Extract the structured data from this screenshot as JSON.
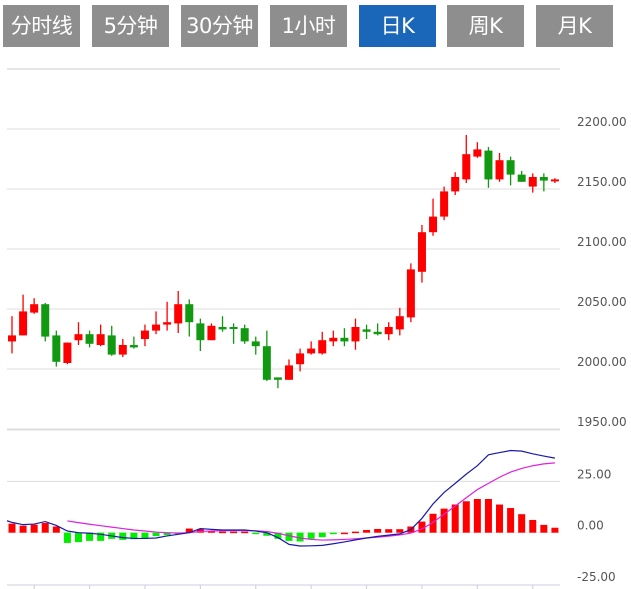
{
  "tabs": [
    {
      "label": "分时线",
      "active": false
    },
    {
      "label": "5分钟",
      "active": false
    },
    {
      "label": "30分钟",
      "active": false
    },
    {
      "label": "1小时",
      "active": false
    },
    {
      "label": "日K",
      "active": true
    },
    {
      "label": "周K",
      "active": false
    },
    {
      "label": "月K",
      "active": false
    }
  ],
  "colors": {
    "up": "#ff0000",
    "down": "#119911",
    "macd_down": "#00ee00",
    "dif": "#1a1aaa",
    "dea": "#e020e0",
    "tab": "#8e8e8e",
    "tab_active": "#1a66b8",
    "grid": "#dddddd"
  },
  "chart_data": [
    {
      "type": "candlestick",
      "title": "",
      "ylim": [
        1950,
        2250
      ],
      "yticks": [
        2200,
        2150,
        2100,
        2050,
        2000,
        1950
      ],
      "ytick_labels": [
        "2200.00",
        "2150.00",
        "2100.00",
        "2050.00",
        "2000.00",
        "1950.00"
      ],
      "ohlc": [
        [
          2023,
          2044,
          2013,
          2028
        ],
        [
          2028,
          2062,
          2028,
          2048
        ],
        [
          2047,
          2059,
          2046,
          2054
        ],
        [
          2054,
          2055,
          2023,
          2027
        ],
        [
          2028,
          2032,
          2002,
          2006
        ],
        [
          2005,
          2022,
          2004,
          2022
        ],
        [
          2024,
          2039,
          2020,
          2029
        ],
        [
          2029,
          2032,
          2018,
          2021
        ],
        [
          2020,
          2037,
          2019,
          2029
        ],
        [
          2028,
          2036,
          2011,
          2012
        ],
        [
          2012,
          2025,
          2010,
          2020
        ],
        [
          2020,
          2027,
          2017,
          2018
        ],
        [
          2025,
          2037,
          2019,
          2032
        ],
        [
          2032,
          2048,
          2029,
          2037
        ],
        [
          2037,
          2056,
          2032,
          2039
        ],
        [
          2038,
          2065,
          2030,
          2054
        ],
        [
          2054,
          2058,
          2027,
          2039
        ],
        [
          2038,
          2042,
          2015,
          2024
        ],
        [
          2024,
          2038,
          2024,
          2036
        ],
        [
          2035,
          2044,
          2031,
          2033
        ],
        [
          2035,
          2038,
          2021,
          2034
        ],
        [
          2034,
          2037,
          2021,
          2023
        ],
        [
          2023,
          2027,
          2012,
          2019
        ],
        [
          2019,
          2032,
          1990,
          1991
        ],
        [
          1993,
          1993,
          1984,
          1991
        ],
        [
          1991,
          2008,
          1991,
          2003
        ],
        [
          2004,
          2017,
          1998,
          2013
        ],
        [
          2013,
          2023,
          2012,
          2017
        ],
        [
          2013,
          2031,
          2012,
          2024
        ],
        [
          2023,
          2032,
          2019,
          2026
        ],
        [
          2026,
          2034,
          2019,
          2023
        ],
        [
          2023,
          2042,
          2016,
          2035
        ],
        [
          2033,
          2037,
          2025,
          2031
        ],
        [
          2031,
          2038,
          2028,
          2029
        ],
        [
          2029,
          2039,
          2024,
          2035
        ],
        [
          2033,
          2051,
          2028,
          2044
        ],
        [
          2043,
          2088,
          2039,
          2083
        ],
        [
          2081,
          2120,
          2072,
          2114
        ],
        [
          2114,
          2142,
          2111,
          2127
        ],
        [
          2127,
          2152,
          2124,
          2148
        ],
        [
          2148,
          2164,
          2145,
          2160
        ],
        [
          2158,
          2195,
          2155,
          2179
        ],
        [
          2177,
          2189,
          2176,
          2183
        ],
        [
          2182,
          2185,
          2151,
          2158
        ],
        [
          2158,
          2180,
          2156,
          2174
        ],
        [
          2174,
          2177,
          2153,
          2162
        ],
        [
          2162,
          2165,
          2156,
          2156
        ],
        [
          2152,
          2163,
          2147,
          2160
        ],
        [
          2160,
          2163,
          2148,
          2157
        ],
        [
          2157,
          2159,
          2155,
          2158
        ]
      ]
    },
    {
      "type": "macd",
      "ylim": [
        -25,
        50
      ],
      "yticks": [
        25,
        0,
        -25
      ],
      "ytick_labels": [
        "25.00",
        "0.00",
        "-25.00"
      ],
      "histogram": [
        4.4,
        3.4,
        3.9,
        4.7,
        3.0,
        -5,
        -4.6,
        -4,
        -4,
        -3,
        -3.5,
        -3.2,
        -2.7,
        -1.7,
        -1.2,
        -0.5,
        2,
        1.8,
        0.7,
        0.5,
        0.5,
        0.5,
        -0.5,
        -1.5,
        -3,
        -4,
        -4.3,
        -3,
        -2.2,
        -0.6,
        0,
        0.5,
        1.3,
        1.8,
        1.7,
        1.7,
        3,
        5.4,
        9.2,
        11.7,
        13.7,
        15.3,
        16.4,
        16.4,
        13.7,
        12,
        9,
        6.2,
        3.8,
        2.4
      ],
      "dif": [
        5.0,
        3.9,
        4.2,
        5.4,
        3.5,
        0.8,
        0,
        -0.3,
        -0.8,
        -1.6,
        -2.4,
        -2.8,
        -2.8,
        -2.6,
        -1.6,
        -0.8,
        0,
        2,
        1.6,
        1.3,
        1.3,
        1.3,
        0.8,
        0,
        -2.4,
        -5.7,
        -6.5,
        -6.4,
        -6.2,
        -5.4,
        -4.5,
        -3.5,
        -2.6,
        -1.8,
        -1.2,
        -0.6,
        1.5,
        7,
        14,
        19.6,
        24,
        28.5,
        32.6,
        37.9,
        39,
        40,
        39.7,
        38.4,
        37.3,
        36.3
      ],
      "dea": [
        null,
        null,
        null,
        null,
        null,
        5.7,
        4.9,
        4.1,
        3.4,
        2.7,
        2.0,
        1.3,
        0.8,
        0.3,
        0,
        -0.2,
        0,
        0.6,
        0.8,
        0.9,
        1.0,
        1.0,
        0.9,
        0.6,
        -0.3,
        -1.5,
        -2.6,
        -3.3,
        -3.6,
        -3.5,
        -3.3,
        -3,
        -2.6,
        -2.2,
        -1.7,
        -1.1,
        -0.2,
        1.8,
        5,
        9,
        13,
        17,
        21,
        24,
        27,
        29.5,
        31.3,
        32.6,
        33.5,
        34
      ]
    }
  ]
}
